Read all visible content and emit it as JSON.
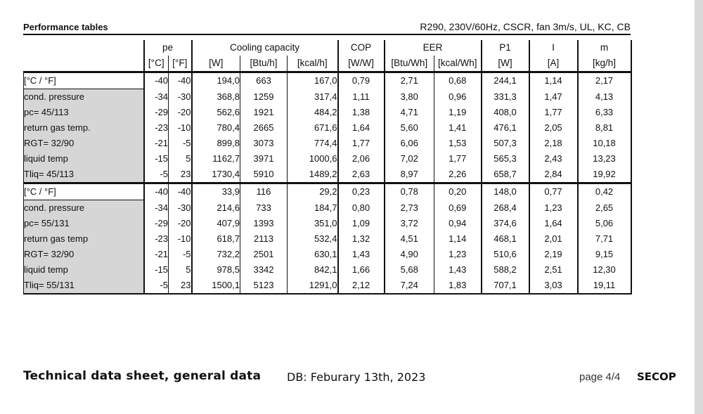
{
  "header": {
    "title": "Performance tables",
    "spec": "R290, 230V/60Hz, CSCR, fan 3m/s, UL, KC, CB"
  },
  "columns": {
    "top": {
      "pe": "pe",
      "cooling": "Cooling capacity",
      "cop": "COP",
      "eer": "EER",
      "p1": "P1",
      "i": "I",
      "m": "m"
    },
    "units": [
      "[°C]",
      "[°F]",
      "[W]",
      "[Btu/h]",
      "[kcal/h]",
      "[W/W]",
      "[Btu/Wh]",
      "[kcal/Wh]",
      "[W]",
      "[A]",
      "[kg/h]"
    ]
  },
  "groups": [
    {
      "labels": [
        "[°C / °F]",
        "cond. pressure",
        "pc= 45/113",
        "return gas temp.",
        "RGT= 32/90",
        "liquid temp",
        "Tliq= 45/113"
      ],
      "rows": [
        [
          "-40",
          "-40",
          "194,0",
          "663",
          "167,0",
          "0,79",
          "2,71",
          "0,68",
          "244,1",
          "1,14",
          "2,17"
        ],
        [
          "-34",
          "-30",
          "368,8",
          "1259",
          "317,4",
          "1,11",
          "3,80",
          "0,96",
          "331,3",
          "1,47",
          "4,13"
        ],
        [
          "-29",
          "-20",
          "562,6",
          "1921",
          "484,2",
          "1,38",
          "4,71",
          "1,19",
          "408,0",
          "1,77",
          "6,33"
        ],
        [
          "-23",
          "-10",
          "780,4",
          "2665",
          "671,6",
          "1,64",
          "5,60",
          "1,41",
          "476,1",
          "2,05",
          "8,81"
        ],
        [
          "-21",
          "-5",
          "899,8",
          "3073",
          "774,4",
          "1,77",
          "6,06",
          "1,53",
          "507,3",
          "2,18",
          "10,18"
        ],
        [
          "-15",
          "5",
          "1162,7",
          "3971",
          "1000,6",
          "2,06",
          "7,02",
          "1,77",
          "565,3",
          "2,43",
          "13,23"
        ],
        [
          "-5",
          "23",
          "1730,4",
          "5910",
          "1489,2",
          "2,63",
          "8,97",
          "2,26",
          "658,7",
          "2,84",
          "19,92"
        ]
      ]
    },
    {
      "labels": [
        "[°C / °F]",
        "cond. pressure",
        "pc= 55/131",
        "return gas temp",
        "RGT= 32/90",
        "liquid temp",
        "Tliq= 55/131"
      ],
      "rows": [
        [
          "-40",
          "-40",
          "33,9",
          "116",
          "29,2",
          "0,23",
          "0,78",
          "0,20",
          "148,0",
          "0,77",
          "0,42"
        ],
        [
          "-34",
          "-30",
          "214,6",
          "733",
          "184,7",
          "0,80",
          "2,73",
          "0,69",
          "268,4",
          "1,23",
          "2,65"
        ],
        [
          "-29",
          "-20",
          "407,9",
          "1393",
          "351,0",
          "1,09",
          "3,72",
          "0,94",
          "374,6",
          "1,64",
          "5,06"
        ],
        [
          "-23",
          "-10",
          "618,7",
          "2113",
          "532,4",
          "1,32",
          "4,51",
          "1,14",
          "468,1",
          "2,01",
          "7,71"
        ],
        [
          "-21",
          "-5",
          "732,2",
          "2501",
          "630,1",
          "1,43",
          "4,90",
          "1,23",
          "510,6",
          "2,19",
          "9,15"
        ],
        [
          "-15",
          "5",
          "978,5",
          "3342",
          "842,1",
          "1,66",
          "5,68",
          "1,43",
          "588,2",
          "2,51",
          "12,30"
        ],
        [
          "-5",
          "23",
          "1500,1",
          "5123",
          "1291,0",
          "2,12",
          "7,24",
          "1,83",
          "707,1",
          "3,03",
          "19,11"
        ]
      ]
    }
  ],
  "footer": {
    "title": "Technical data sheet, general data",
    "date": "DB: Feburary 13th, 2023",
    "page": "page 4/4",
    "brand": "SECOP"
  },
  "colors": {
    "label_shade": "#d6d6d6",
    "rule": "#111111"
  }
}
